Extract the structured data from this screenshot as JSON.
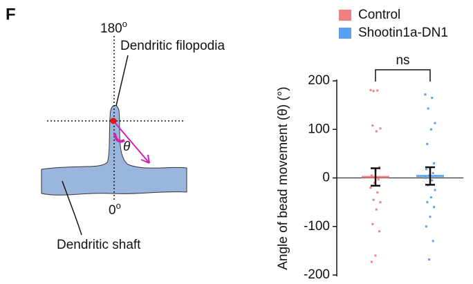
{
  "panel_label": "F",
  "diagram": {
    "top_angle": "180",
    "top_angle_sup": "o",
    "filopodia_label": "Dendritic filopodia",
    "theta": "θ",
    "bottom_angle": "0",
    "bottom_angle_sup": "o",
    "shaft_label": "Dendritic shaft"
  },
  "chart_data": {
    "type": "strip",
    "y_label": "Angle of bead movement (θ) (°)",
    "categories": [
      "Control",
      "Shootin1a-DN1"
    ],
    "series": [
      {
        "name": "Control",
        "color": "#f07f80",
        "values": [
          181,
          180,
          179,
          102,
          96,
          108,
          22,
          15,
          5,
          -3,
          -10,
          -20,
          -30,
          -45,
          -50,
          -65,
          -95,
          -110,
          -160,
          -173
        ],
        "mean": 2,
        "error": 18
      },
      {
        "name": "Shootin1a-DN1",
        "color": "#5a9ff0",
        "values": [
          172,
          165,
          143,
          113,
          100,
          70,
          30,
          20,
          18,
          10,
          5,
          0,
          -5,
          -15,
          -25,
          -40,
          -50,
          -60,
          -80,
          -100,
          -130,
          -168
        ],
        "mean": 4,
        "error": 18
      }
    ],
    "annotation": "ns",
    "ylim": [
      -200,
      200
    ],
    "yticks": [
      -200,
      -100,
      0,
      100,
      200
    ]
  }
}
